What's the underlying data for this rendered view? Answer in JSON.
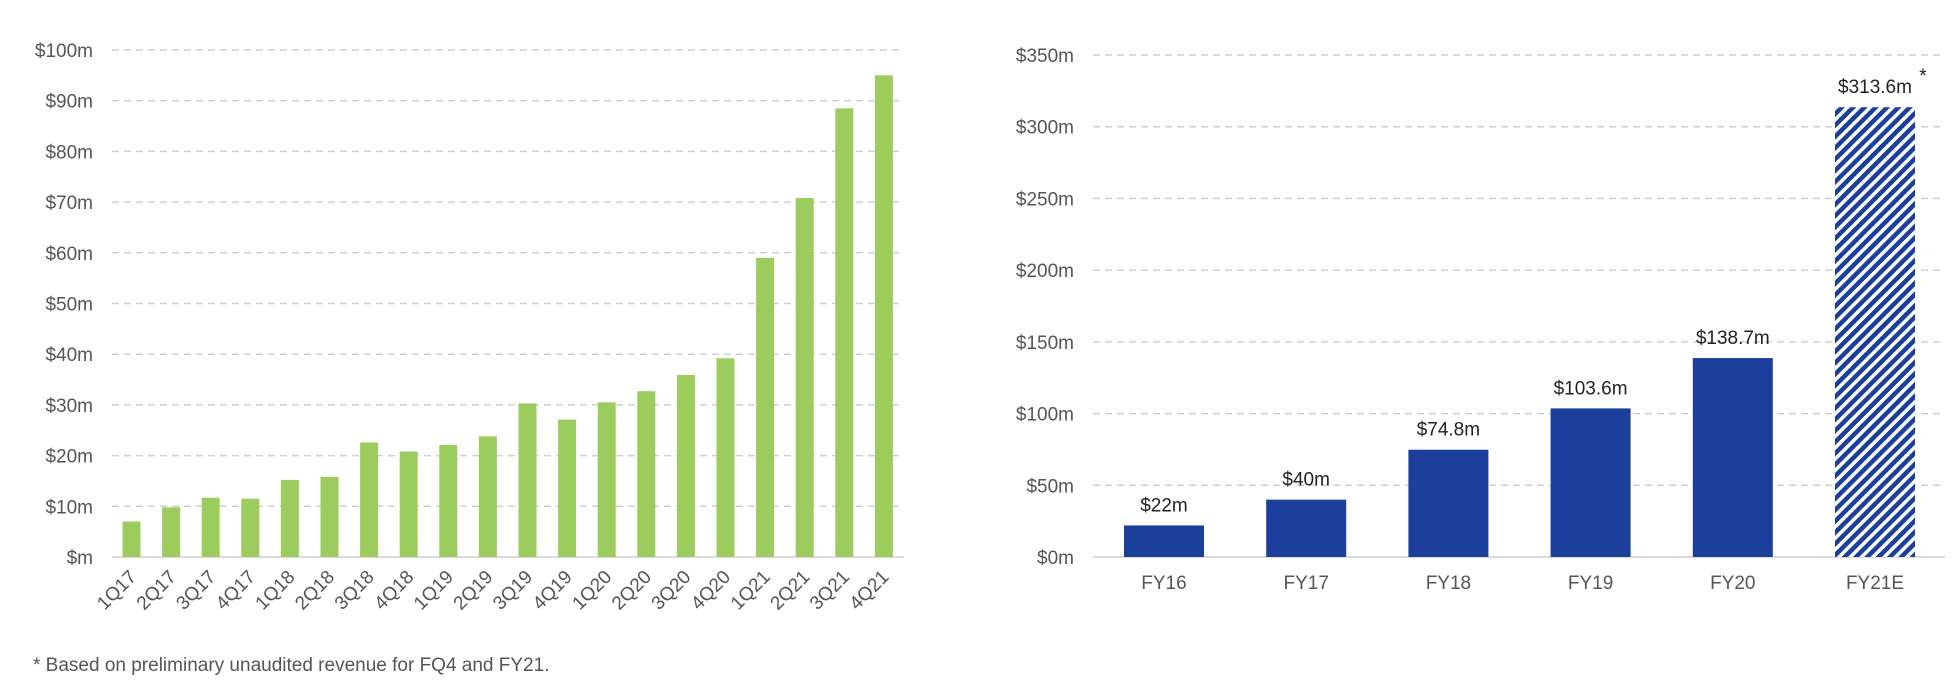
{
  "chart_data": [
    {
      "type": "bar",
      "title": "",
      "xlabel": "",
      "ylabel": "",
      "ylim": [
        0,
        100
      ],
      "y_ticks": [
        "$m",
        "$10m",
        "$20m",
        "$30m",
        "$40m",
        "$50m",
        "$60m",
        "$70m",
        "$80m",
        "$90m",
        "$100m"
      ],
      "y_tick_values": [
        0,
        10,
        20,
        30,
        40,
        50,
        60,
        70,
        80,
        90,
        100
      ],
      "grid": true,
      "bar_color": "#9ccc5e",
      "categories": [
        "1Q17",
        "2Q17",
        "3Q17",
        "4Q17",
        "1Q18",
        "2Q18",
        "3Q18",
        "4Q18",
        "1Q19",
        "2Q19",
        "3Q19",
        "4Q19",
        "1Q20",
        "2Q20",
        "3Q20",
        "4Q20",
        "1Q21",
        "2Q21",
        "3Q21",
        "4Q21"
      ],
      "values": [
        7,
        9.8,
        11.7,
        11.5,
        15.2,
        15.8,
        22.6,
        20.8,
        22.1,
        23.8,
        30.3,
        27.1,
        30.5,
        32.7,
        35.9,
        39.2,
        59.0,
        70.8,
        88.5,
        95.0
      ]
    },
    {
      "type": "bar",
      "title": "",
      "xlabel": "",
      "ylabel": "",
      "ylim": [
        0,
        350
      ],
      "y_ticks": [
        "$0m",
        "$50m",
        "$100m",
        "$150m",
        "$200m",
        "$250m",
        "$300m",
        "$350m"
      ],
      "y_tick_values": [
        0,
        50,
        100,
        150,
        200,
        250,
        300,
        350
      ],
      "grid": true,
      "bar_color": "#1b3f9a",
      "categories": [
        "FY16",
        "FY17",
        "FY18",
        "FY19",
        "FY20",
        "FY21E"
      ],
      "values": [
        22,
        40,
        74.8,
        103.6,
        138.7,
        313.6
      ],
      "data_labels": [
        "$22m",
        "$40m",
        "$74.8m",
        "$103.6m",
        "$138.7m",
        "$313.6m"
      ],
      "hatched": [
        false,
        false,
        false,
        false,
        false,
        true
      ],
      "asterisk_marker": "*"
    }
  ],
  "footnote": "* Based on preliminary unaudited revenue for FQ4 and FY21."
}
